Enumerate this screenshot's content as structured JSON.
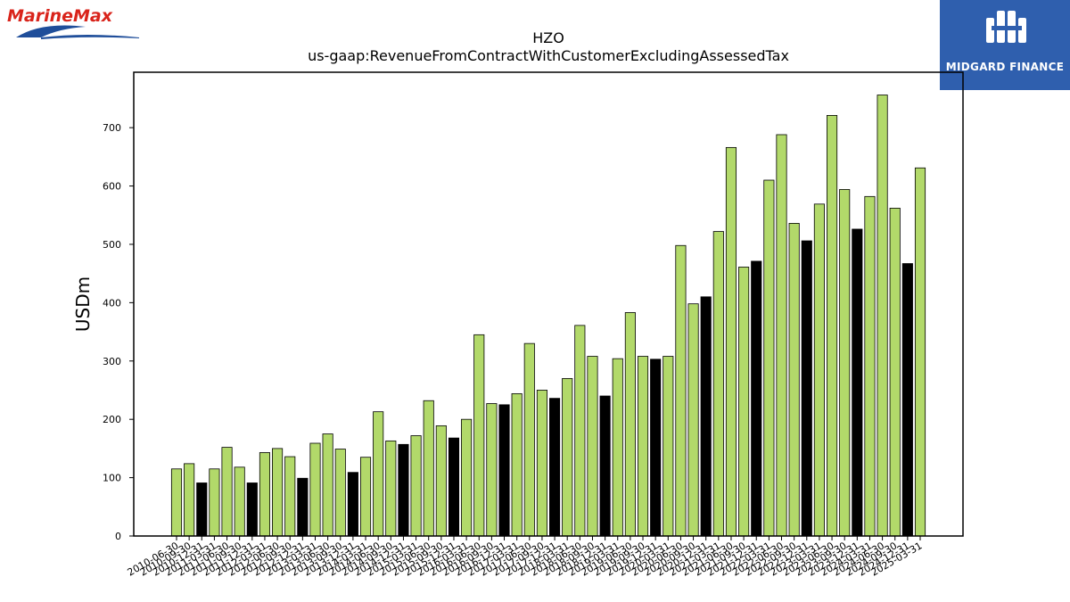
{
  "header": {
    "left_logo": "MarineMax",
    "right_logo": "MIDGARD FINANCE"
  },
  "chart_data": {
    "type": "bar",
    "title": "HZO",
    "subtitle": "us-gaap:RevenueFromContractWithCustomerExcludingAssessedTax",
    "xlabel": "",
    "ylabel": "USDm",
    "ylim": [
      0,
      795
    ],
    "yticks": [
      0,
      100,
      200,
      300,
      400,
      500,
      600,
      700
    ],
    "grid": false,
    "colors": {
      "quarter": "#b2d96a",
      "annual": "#000000",
      "edge": "#000000"
    },
    "categories": [
      "2010-06-30",
      "2010-09-30",
      "2010-12-31",
      "2011-03-31",
      "2011-06-30",
      "2011-09-30",
      "2011-12-31",
      "2012-03-31",
      "2012-06-30",
      "2012-09-30",
      "2012-12-31",
      "2013-03-31",
      "2013-06-30",
      "2013-09-30",
      "2013-12-31",
      "2014-03-31",
      "2014-06-30",
      "2014-09-30",
      "2014-12-31",
      "2015-03-31",
      "2015-06-30",
      "2015-09-30",
      "2015-12-31",
      "2016-03-31",
      "2016-06-30",
      "2016-09-30",
      "2016-12-31",
      "2017-03-31",
      "2017-06-30",
      "2017-09-30",
      "2017-12-31",
      "2018-03-31",
      "2018-06-30",
      "2018-09-30",
      "2018-12-31",
      "2019-03-31",
      "2019-06-30",
      "2019-09-30",
      "2019-12-31",
      "2020-03-31",
      "2020-06-30",
      "2020-09-30",
      "2020-12-31",
      "2021-03-31",
      "2021-06-30",
      "2021-09-30",
      "2021-12-31",
      "2022-03-31",
      "2022-06-30",
      "2022-09-30",
      "2022-12-31",
      "2023-03-31",
      "2023-06-30",
      "2023-09-30",
      "2023-12-31",
      "2024-03-31",
      "2024-06-30",
      "2024-09-30",
      "2024-12-31",
      "2025-03-31"
    ],
    "values": [
      115,
      124,
      91,
      115,
      152,
      118,
      91,
      143,
      150,
      136,
      99,
      159,
      175,
      149,
      109,
      135,
      213,
      163,
      157,
      172,
      232,
      189,
      168,
      200,
      345,
      227,
      225,
      244,
      330,
      250,
      236,
      270,
      361,
      308,
      240,
      304,
      383,
      308,
      303,
      308,
      498,
      398,
      410,
      522,
      666,
      461,
      471,
      610,
      688,
      536,
      506,
      569,
      721,
      594,
      526,
      582,
      756,
      562,
      467,
      631
    ],
    "bar_types": [
      "q",
      "q",
      "a",
      "q",
      "q",
      "q",
      "a",
      "q",
      "q",
      "q",
      "a",
      "q",
      "q",
      "q",
      "a",
      "q",
      "q",
      "q",
      "a",
      "q",
      "q",
      "q",
      "a",
      "q",
      "q",
      "q",
      "a",
      "q",
      "q",
      "q",
      "a",
      "q",
      "q",
      "q",
      "a",
      "q",
      "q",
      "q",
      "a",
      "q",
      "q",
      "q",
      "a",
      "q",
      "q",
      "q",
      "a",
      "q",
      "q",
      "q",
      "a",
      "q",
      "q",
      "q",
      "a",
      "q",
      "q",
      "q",
      "a",
      "q"
    ]
  }
}
